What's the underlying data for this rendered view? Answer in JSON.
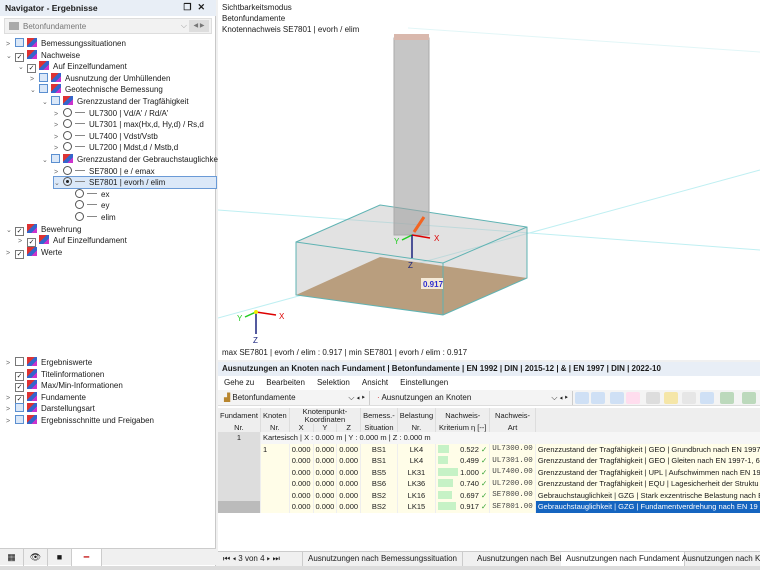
{
  "navigator": {
    "title": "Navigator - Ergebnisse",
    "combo": "Betonfundamente",
    "tree": [
      {
        "label": "Bemessungssituationen",
        "level": 0,
        "exp": ">",
        "check": "blue"
      },
      {
        "label": "Nachweise",
        "level": 0,
        "exp": "v",
        "check": "checked"
      },
      {
        "label": "Auf Einzelfundament",
        "level": 1,
        "exp": "v",
        "check": "checked"
      },
      {
        "label": "Ausnutzung der Umhüllenden",
        "level": 2,
        "exp": ">",
        "check": "blue"
      },
      {
        "label": "Geotechnische Bemessung",
        "level": 2,
        "exp": "v",
        "check": "blue"
      },
      {
        "label": "Grenzzustand der Tragfähigkeit",
        "level": 3,
        "exp": "v",
        "check": "blue"
      },
      {
        "label": "UL7300 | Vd/A' / Rd/A'",
        "level": 4,
        "exp": ">",
        "radio": false
      },
      {
        "label": "UL7301 | max(Hx,d, Hy,d) / Rs,d",
        "level": 4,
        "exp": ">",
        "radio": false
      },
      {
        "label": "UL7400 | Vdst/Vstb",
        "level": 4,
        "exp": ">",
        "radio": false
      },
      {
        "label": "UL7200 | Mdst,d / Mstb,d",
        "level": 4,
        "exp": ">",
        "radio": false
      },
      {
        "label": "Grenzzustand der Gebrauchstauglichkeit",
        "level": 3,
        "exp": "v",
        "check": "blue"
      },
      {
        "label": "SE7800 | e / emax",
        "level": 4,
        "exp": ">",
        "radio": false
      },
      {
        "label": "SE7801 | evorh / elim",
        "level": 4,
        "exp": "v",
        "radio": true,
        "selected": true
      },
      {
        "label": "ex",
        "level": 5,
        "radio": false
      },
      {
        "label": "ey",
        "level": 5,
        "radio": false
      },
      {
        "label": "elim",
        "level": 5,
        "radio": false
      },
      {
        "label": "Bewehrung",
        "level": 0,
        "exp": "v",
        "check": "checked"
      },
      {
        "label": "Auf Einzelfundament",
        "level": 1,
        "exp": ">",
        "check": "checked"
      },
      {
        "label": "Werte",
        "level": 0,
        "exp": ">",
        "check": "checked"
      }
    ],
    "tree2": [
      {
        "label": "Ergebniswerte",
        "exp": ">",
        "check": "empty"
      },
      {
        "label": "Titelinformationen",
        "exp": "",
        "check": "checked"
      },
      {
        "label": "Max/Min-Informationen",
        "exp": "",
        "check": "checked"
      },
      {
        "label": "Fundamente",
        "exp": ">",
        "check": "checked"
      },
      {
        "label": "Darstellungsart",
        "exp": ">",
        "check": "blue"
      },
      {
        "label": "Ergebnisschnitte und Freigaben",
        "exp": ">",
        "check": "blue"
      }
    ],
    "tabs": [
      "data-icon",
      "eye-icon",
      "camera-icon",
      "results-icon"
    ]
  },
  "view": {
    "line1": "Sichtbarkeitsmodus",
    "line2": "Betonfundamente",
    "line3": "Knotennachweis SE7801 | evorh / elim",
    "value_label": "0.917",
    "footer": "max SE7801 | evorh / elim : 0.917 | min SE7801 | evorh / elim : 0.917",
    "axes": {
      "x": "X",
      "y": "Y",
      "z": "Z"
    }
  },
  "table": {
    "title": "Ausnutzungen an Knoten nach Fundament | Betonfundamente | EN 1992 | DIN | 2015-12 | & | EN 1997 | DIN | 2022-10",
    "menu": [
      "Gehe zu",
      "Bearbeiten",
      "Selektion",
      "Ansicht",
      "Einstellungen"
    ],
    "combo1": "Betonfundamente",
    "combo2": "Ausnutzungen an Knoten",
    "headers_top": [
      "Fundament",
      "Knoten",
      "Knotenpunkt-Koordinaten",
      "Bemess.-",
      "Belastung",
      "Nachweis-",
      "Nachweis-"
    ],
    "headers_bottom": [
      "Nr.",
      "Nr.",
      "X",
      "Y",
      "Z",
      "Situation",
      "Nr.",
      "Kriterium η [--]",
      "Art"
    ],
    "group_no": "1",
    "group_label": "Kartesisch | X : 0.000 m | Y : 0.000 m | Z : 0.000 m",
    "rows": [
      {
        "knoten": "1",
        "x": "0.000",
        "y": "0.000",
        "z": "0.000",
        "bs": "BS1",
        "lk": "LK4",
        "eta": 0.522,
        "eta_s": "0.522",
        "art": "UL7300.00",
        "desc": "Grenzzustand der Tragfähigkeit | GEO | Grundbruch nach EN 1997"
      },
      {
        "knoten": "",
        "x": "0.000",
        "y": "0.000",
        "z": "0.000",
        "bs": "BS1",
        "lk": "LK4",
        "eta": 0.499,
        "eta_s": "0.499",
        "art": "UL7301.00",
        "desc": "Grenzzustand der Tragfähigkeit | GEO | Gleiten nach EN 1997-1, 6."
      },
      {
        "knoten": "",
        "x": "0.000",
        "y": "0.000",
        "z": "0.000",
        "bs": "BS5",
        "lk": "LK31",
        "eta": 1.0,
        "eta_s": "1.000",
        "art": "UL7400.00",
        "desc": "Grenzzustand der Tragfähigkeit | UPL | Aufschwimmen nach EN 19"
      },
      {
        "knoten": "",
        "x": "0.000",
        "y": "0.000",
        "z": "0.000",
        "bs": "BS6",
        "lk": "LK36",
        "eta": 0.74,
        "eta_s": "0.740",
        "art": "UL7200.00",
        "desc": "Grenzzustand der Tragfähigkeit | EQU | Lagesicherheit der Struktu"
      },
      {
        "knoten": "",
        "x": "0.000",
        "y": "0.000",
        "z": "0.000",
        "bs": "BS2",
        "lk": "LK16",
        "eta": 0.697,
        "eta_s": "0.697",
        "art": "SE7800.00",
        "desc": "Gebrauchstauglichkeit | GZG | Stark exzentrische Belastung nach E"
      },
      {
        "knoten": "",
        "x": "0.000",
        "y": "0.000",
        "z": "0.000",
        "bs": "BS2",
        "lk": "LK15",
        "eta": 0.917,
        "eta_s": "0.917",
        "art": "SE7801.00",
        "desc": "Gebrauchstauglichkeit | GZG | Fundamentverdrehung nach EN 19",
        "selected": true
      }
    ],
    "pager": "3 von 4",
    "tabs": [
      "Ausnutzungen nach Bemessungssituation",
      "Ausnutzungen nach Belastung",
      "Ausnutzungen nach Fundament",
      "Ausnutzungen nach Kno"
    ],
    "active_tab": 2
  },
  "colors": {
    "accent": "#1565c0",
    "soil": "#b5844a",
    "ok": "#2a9d2a"
  }
}
